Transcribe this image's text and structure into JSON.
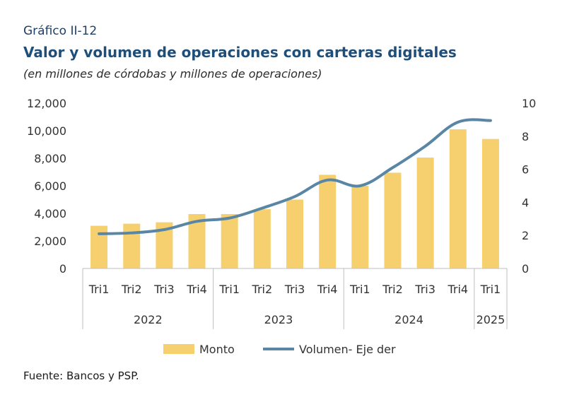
{
  "header": {
    "label": "Gráfico II-12",
    "title": "Valor y volumen de operaciones con carteras digitales",
    "subtitle": "(en millones de córdobas y millones de operaciones)"
  },
  "footer": {
    "source": "Fuente: Bancos y PSP."
  },
  "colors": {
    "bar": "#f6d06f",
    "line": "#5a86a6",
    "axis": "#bfbfbf",
    "title": "#1f4e79"
  },
  "chart_data": {
    "type": "bar",
    "categories": [
      "Tri1",
      "Tri2",
      "Tri3",
      "Tri4",
      "Tri1",
      "Tri2",
      "Tri3",
      "Tri4",
      "Tri1",
      "Tri2",
      "Tri3",
      "Tri4",
      "Tri1"
    ],
    "groups": [
      {
        "label": "2022",
        "start": 0,
        "count": 4
      },
      {
        "label": "2023",
        "start": 4,
        "count": 4
      },
      {
        "label": "2024",
        "start": 8,
        "count": 4
      },
      {
        "label": "2025",
        "start": 12,
        "count": 1
      }
    ],
    "series": [
      {
        "name": "Monto",
        "type": "bar",
        "axis": "left",
        "values": [
          3100,
          3250,
          3350,
          3950,
          3950,
          4300,
          5000,
          6800,
          6000,
          6950,
          8050,
          10100,
          9400
        ]
      },
      {
        "name": "Volumen- Eje der",
        "type": "line",
        "axis": "right",
        "values": [
          2.1,
          2.15,
          2.35,
          2.85,
          3.05,
          3.65,
          4.35,
          5.35,
          5.0,
          6.1,
          7.4,
          8.85,
          8.95
        ]
      }
    ],
    "y_left": {
      "min": 0,
      "max": 12000,
      "ticks": [
        "0",
        "2,000",
        "4,000",
        "6,000",
        "8,000",
        "10,000",
        "12,000"
      ],
      "tick_values": [
        0,
        2000,
        4000,
        6000,
        8000,
        10000,
        12000
      ]
    },
    "y_right": {
      "min": 0,
      "max": 10,
      "ticks": [
        "0",
        "2",
        "4",
        "6",
        "8",
        "10"
      ],
      "tick_values": [
        0,
        2,
        4,
        6,
        8,
        10
      ]
    },
    "legend_position": "bottom",
    "grid": false
  }
}
